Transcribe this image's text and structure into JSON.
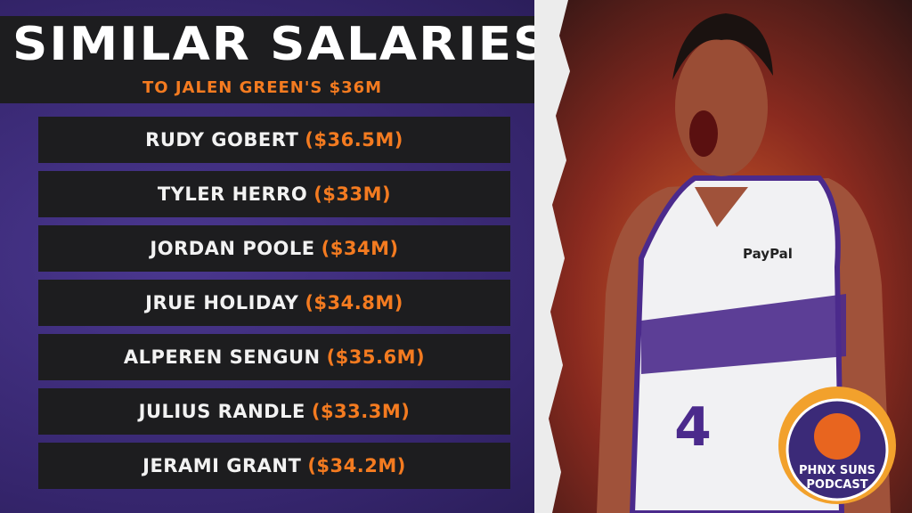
{
  "header": {
    "title": "SIMILAR SALARIES",
    "subtitle": "TO JALEN GREEN'S $36M"
  },
  "rows": [
    {
      "name": "RUDY GOBERT",
      "salary": "($36.5M)"
    },
    {
      "name": "TYLER HERRO",
      "salary": "($33M)"
    },
    {
      "name": "JORDAN POOLE",
      "salary": "($34M)"
    },
    {
      "name": "JRUE HOLIDAY",
      "salary": "($34.8M)"
    },
    {
      "name": "ALPEREN SENGUN",
      "salary": "($35.6M)"
    },
    {
      "name": "JULIUS RANDLE",
      "salary": "($33.3M)"
    },
    {
      "name": "JERAMI GRANT",
      "salary": "($34.2M)"
    }
  ],
  "photo": {
    "sponsor": "PayPal",
    "number": "4"
  },
  "logo": {
    "line1": "PHNX SUNS",
    "line2": "PODCAST"
  }
}
